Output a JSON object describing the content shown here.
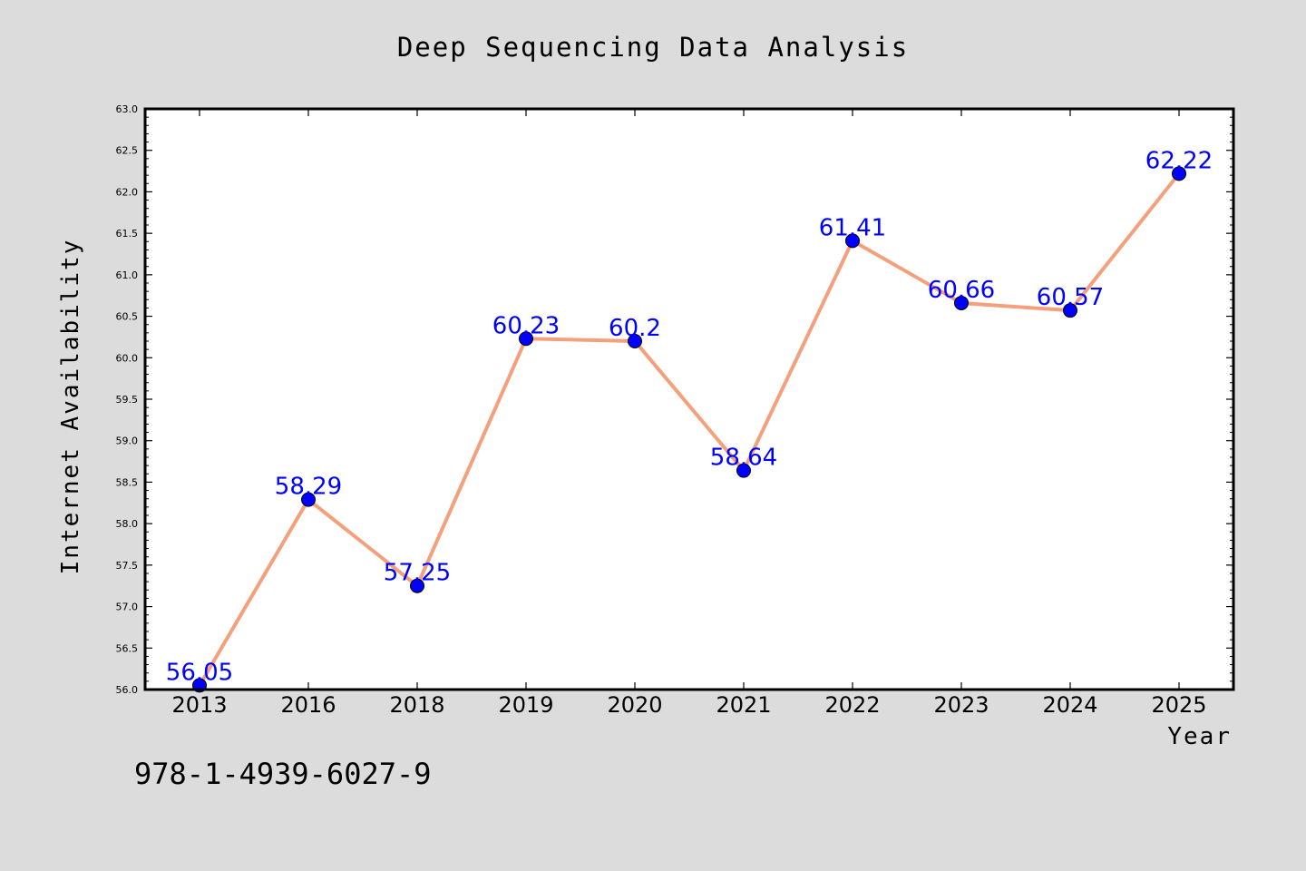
{
  "chart_data": {
    "type": "line",
    "title": "Deep Sequencing Data Analysis",
    "xlabel": "Year",
    "ylabel": "Internet Availability",
    "categories": [
      "2013",
      "2016",
      "2018",
      "2019",
      "2020",
      "2021",
      "2022",
      "2023",
      "2024",
      "2025"
    ],
    "series": [
      {
        "values": [
          56.05,
          58.29,
          57.25,
          60.23,
          60.2,
          58.64,
          61.41,
          60.66,
          60.57,
          62.22
        ],
        "data_labels": [
          "56.05",
          "58.29",
          "57.25",
          "60.23",
          "60.2",
          "58.64",
          "61.41",
          "60.66",
          "60.57",
          "62.22"
        ],
        "line_color": "#f4a07c",
        "marker_color": "#0000ff"
      }
    ],
    "ylim": [
      56.0,
      63.0
    ],
    "yticks": [
      "56.0",
      "56.5",
      "57.0",
      "57.5",
      "58.0",
      "58.5",
      "59.0",
      "59.5",
      "60.0",
      "60.5",
      "61.0",
      "61.5",
      "62.0",
      "62.5",
      "63.0"
    ],
    "grid": false,
    "legend": false,
    "background_color": "#dcdcdc",
    "plot_background": "#ffffff",
    "label_color": "#0000ff"
  },
  "footer": {
    "isbn": "978-1-4939-6027-9"
  }
}
